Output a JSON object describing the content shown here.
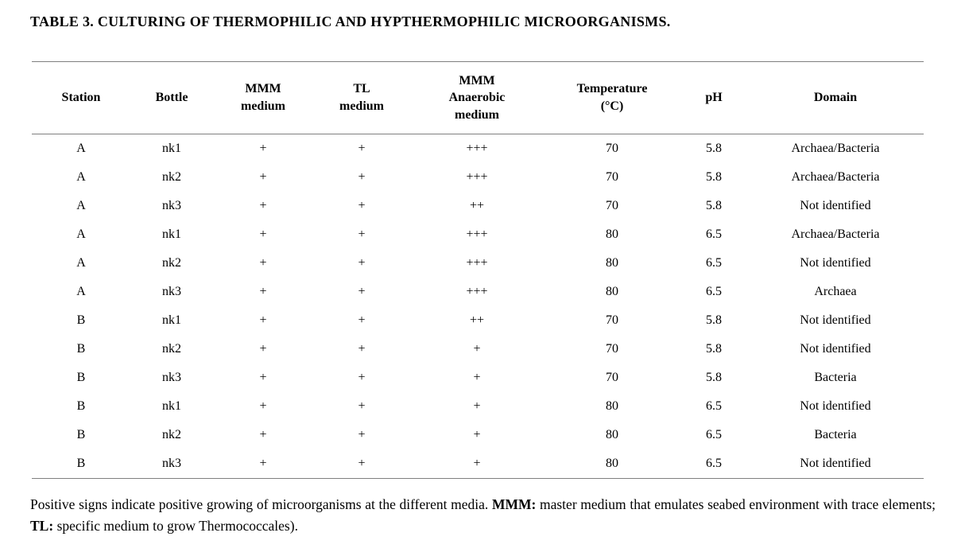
{
  "page": {
    "background_color": "#ffffff",
    "rule_color": "#7f7f7f",
    "text_color": "#000000"
  },
  "title": "TABLE 3. CULTURING OF THERMOPHILIC AND HYPTHERMOPHILIC MICROORGANISMS.",
  "table": {
    "columns": [
      {
        "key": "station",
        "label": "Station"
      },
      {
        "key": "bottle",
        "label": "Bottle"
      },
      {
        "key": "mmm_medium",
        "label": "MMM\nmedium"
      },
      {
        "key": "tl_medium",
        "label": "TL\nmedium"
      },
      {
        "key": "mmm_anaerobic_medium",
        "label": "MMM\nAnaerobic\nmedium"
      },
      {
        "key": "temperature_c",
        "label": "Temperature\n(°C)"
      },
      {
        "key": "ph",
        "label": "pH"
      },
      {
        "key": "domain",
        "label": "Domain"
      }
    ],
    "rows": [
      [
        "A",
        "nk1",
        "+",
        "+",
        "+++",
        "70",
        "5.8",
        "Archaea/Bacteria"
      ],
      [
        "A",
        "nk2",
        "+",
        "+",
        "+++",
        "70",
        "5.8",
        "Archaea/Bacteria"
      ],
      [
        "A",
        "nk3",
        "+",
        "+",
        "++",
        "70",
        "5.8",
        "Not identified"
      ],
      [
        "A",
        "nk1",
        "+",
        "+",
        "+++",
        "80",
        "6.5",
        "Archaea/Bacteria"
      ],
      [
        "A",
        "nk2",
        "+",
        "+",
        "+++",
        "80",
        "6.5",
        "Not identified"
      ],
      [
        "A",
        "nk3",
        "+",
        "+",
        "+++",
        "80",
        "6.5",
        "Archaea"
      ],
      [
        "B",
        "nk1",
        "+",
        "+",
        "++",
        "70",
        "5.8",
        "Not identified"
      ],
      [
        "B",
        "nk2",
        "+",
        "+",
        "+",
        "70",
        "5.8",
        "Not identified"
      ],
      [
        "B",
        "nk3",
        "+",
        "+",
        "+",
        "70",
        "5.8",
        "Bacteria"
      ],
      [
        "B",
        "nk1",
        "+",
        "+",
        "+",
        "80",
        "6.5",
        "Not identified"
      ],
      [
        "B",
        "nk2",
        "+",
        "+",
        "+",
        "80",
        "6.5",
        "Bacteria"
      ],
      [
        "B",
        "nk3",
        "+",
        "+",
        "+",
        "80",
        "6.5",
        "Not identified"
      ]
    ]
  },
  "footer": {
    "part1": "Positive signs indicate positive growing of microorganisms at the different media. ",
    "mmm_label": "MMM:",
    "part2": " master medium that emulates seabed environment with trace elements; ",
    "tl_label": "TL:",
    "part3": " specific medium to grow Thermococcales)."
  }
}
